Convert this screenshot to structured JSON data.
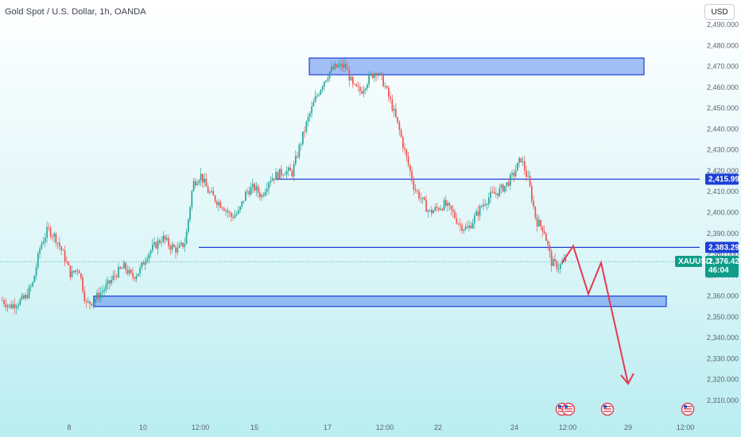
{
  "header": {
    "title": "Gold Spot / U.S. Dollar, 1h, OANDA",
    "currency_button": "USD"
  },
  "colors": {
    "up": "#26a69a",
    "down": "#ef5350",
    "zone_fill": "#5b8def",
    "zone_stroke": "#1b3fd6",
    "line": "#1b3fd6",
    "projection": "#e53950",
    "symbol_tag": "#0f9d8a"
  },
  "chart_data": {
    "type": "candlestick",
    "symbol": "XAUUSD",
    "interval": "1h",
    "ylim": [
      2305,
      2495
    ],
    "y_ticks": [
      "2,310.000",
      "2,320.000",
      "2,330.000",
      "2,340.000",
      "2,350.000",
      "2,360.000",
      "2,370.000",
      "2,380.000",
      "2,390.000",
      "2,400.000",
      "2,410.000",
      "2,420.000",
      "2,430.000",
      "2,440.000",
      "2,450.000",
      "2,460.000",
      "2,470.000",
      "2,480.000",
      "2,490.000"
    ],
    "x_ticks": [
      "8",
      "10",
      "12:00",
      "15",
      "17",
      "12:00",
      "22",
      "24",
      "12:00",
      "29",
      "12:00"
    ],
    "price_path": [
      2358,
      2355,
      2357,
      2359,
      2366,
      2384,
      2392,
      2388,
      2380,
      2370,
      2374,
      2356,
      2358,
      2362,
      2366,
      2371,
      2374,
      2369,
      2372,
      2380,
      2384,
      2388,
      2384,
      2382,
      2386,
      2414,
      2418,
      2410,
      2406,
      2403,
      2398,
      2400,
      2410,
      2412,
      2408,
      2416,
      2418,
      2420,
      2419,
      2432,
      2444,
      2454,
      2462,
      2468,
      2470,
      2470,
      2460,
      2458,
      2464,
      2468,
      2462,
      2452,
      2440,
      2426,
      2412,
      2406,
      2400,
      2402,
      2404,
      2400,
      2394,
      2392,
      2398,
      2404,
      2408,
      2410,
      2413,
      2418,
      2426,
      2415,
      2396,
      2392,
      2376,
      2374,
      2378
    ],
    "current_price_tag": {
      "symbol": "XAUUSD",
      "price": "2,376.420",
      "countdown": "46:04",
      "value": 2376.42
    },
    "levels": [
      {
        "price": 2415.995,
        "label": "2,415.995"
      },
      {
        "price": 2383.296,
        "label": "2,383.296"
      }
    ],
    "zones": [
      {
        "name": "supply-zone",
        "low": 2466,
        "high": 2474
      },
      {
        "name": "demand-zone",
        "low": 2355,
        "high": 2360
      }
    ],
    "projection": [
      2376,
      2384,
      2361,
      2376,
      2318
    ],
    "event_icon_count": 4
  }
}
